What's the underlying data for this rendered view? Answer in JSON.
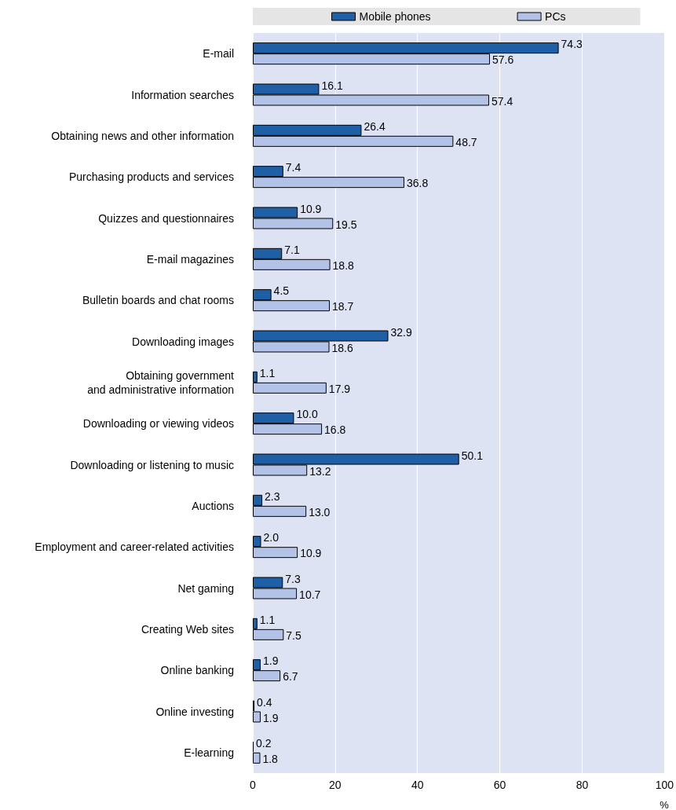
{
  "chart_data": {
    "type": "bar",
    "orientation": "horizontal",
    "xlabel": "%",
    "categories": [
      "E-mail",
      "Information searches",
      "Obtaining news and other information",
      "Purchasing products and services",
      "Quizzes and questionnaires",
      "E-mail magazines",
      "Bulletin boards and chat rooms",
      "Downloading images",
      "Obtaining government\nand administrative information",
      "Downloading or viewing videos",
      "Downloading or listening to music",
      "Auctions",
      "Employment and career-related activities",
      "Net gaming",
      "Creating Web sites",
      "Online banking",
      "Online investing",
      "E-learning"
    ],
    "series": [
      {
        "name": "Mobile phones",
        "color": "#1f5fa6",
        "values": [
          74.3,
          16.1,
          26.4,
          7.4,
          10.9,
          7.1,
          4.5,
          32.9,
          1.1,
          10.0,
          50.1,
          2.3,
          2.0,
          7.3,
          1.1,
          1.9,
          0.4,
          0.2
        ],
        "value_labels": [
          "74.3",
          "16.1",
          "26.4",
          "7.4",
          "10.9",
          "7.1",
          "4.5",
          "32.9",
          "1.1",
          "10.0",
          "50.1",
          "2.3",
          "2.0",
          "7.3",
          "1.1",
          "1.9",
          "0.4",
          "0.2"
        ]
      },
      {
        "name": "PCs",
        "color": "#b3c3e8",
        "values": [
          57.6,
          57.4,
          48.7,
          36.8,
          19.5,
          18.8,
          18.7,
          18.6,
          17.9,
          16.8,
          13.2,
          13.0,
          10.9,
          10.7,
          7.5,
          6.7,
          1.9,
          1.8
        ],
        "value_labels": [
          "57.6",
          "57.4",
          "48.7",
          "36.8",
          "19.5",
          "18.8",
          "18.7",
          "18.6",
          "17.9",
          "16.8",
          "13.2",
          "13.0",
          "10.9",
          "10.7",
          "7.5",
          "6.7",
          "1.9",
          "1.8"
        ]
      }
    ],
    "xlim": [
      0,
      100
    ],
    "xticks": [
      0,
      20,
      40,
      60,
      80,
      100
    ],
    "grid": "x",
    "legend": "top"
  }
}
